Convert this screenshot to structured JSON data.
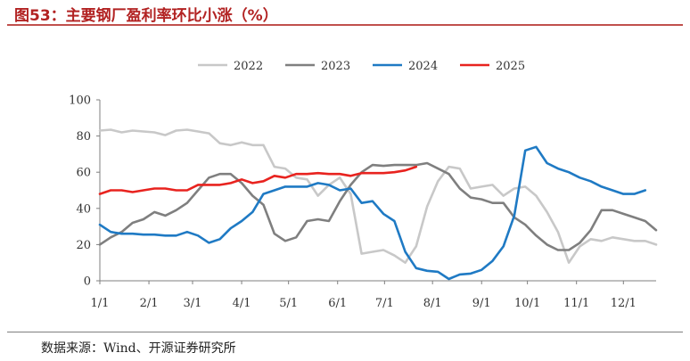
{
  "header": {
    "title": "图53：主要钢厂盈利率环比小涨（%）"
  },
  "footer": {
    "source": "数据来源：Wind、开源证券研究所"
  },
  "colors": {
    "title": "#b22222",
    "accent_rule": "#c0504d"
  },
  "chart_data": {
    "type": "line",
    "title": "",
    "xlabel": "",
    "ylabel": "",
    "x_unit": "week of year (1–52)",
    "x_ticks": [
      {
        "label": "1/1",
        "week": 1
      },
      {
        "label": "2/1",
        "week": 5.5
      },
      {
        "label": "3/1",
        "week": 9.5
      },
      {
        "label": "4/1",
        "week": 14
      },
      {
        "label": "5/1",
        "week": 18.3
      },
      {
        "label": "6/1",
        "week": 22.8
      },
      {
        "label": "7/1",
        "week": 27.1
      },
      {
        "label": "8/1",
        "week": 31.5
      },
      {
        "label": "9/1",
        "week": 36
      },
      {
        "label": "10/1",
        "week": 40.2
      },
      {
        "label": "11/1",
        "week": 44.7
      },
      {
        "label": "12/1",
        "week": 49
      }
    ],
    "xlim": [
      1,
      52
    ],
    "ylim": [
      0,
      100
    ],
    "y_ticks": [
      0,
      20,
      40,
      60,
      80,
      100
    ],
    "grid": false,
    "legend_position": "top-center",
    "series": [
      {
        "name": "2022",
        "color": "#c8c8c8",
        "values": [
          83,
          83.5,
          82,
          83,
          82.5,
          82,
          80.5,
          83,
          83.5,
          82.5,
          81.5,
          76,
          75,
          76.5,
          75,
          75,
          63,
          62,
          57,
          56,
          47,
          53,
          57,
          48,
          15,
          16,
          17,
          14,
          10,
          19,
          41,
          55,
          63,
          62,
          51,
          52,
          53,
          47,
          51,
          52,
          47,
          38,
          27,
          10,
          19,
          23,
          22,
          24,
          23,
          22,
          22,
          20
        ]
      },
      {
        "name": "2023",
        "color": "#7f7f7f",
        "values": [
          20,
          24,
          27,
          32,
          34,
          38,
          36,
          39,
          43,
          50,
          57,
          59,
          59,
          54,
          47,
          42,
          26,
          22,
          24,
          33,
          34,
          33,
          44,
          53,
          60,
          64,
          63.5,
          64,
          64,
          64,
          65,
          62,
          59,
          51,
          46,
          45,
          43,
          43,
          35,
          31,
          25,
          20,
          17,
          17,
          21,
          28,
          39,
          39,
          37,
          35,
          33,
          28
        ]
      },
      {
        "name": "2024",
        "color": "#1f7ac4",
        "values": [
          31,
          27,
          26,
          26,
          25.5,
          25.5,
          25,
          25,
          27,
          25,
          21,
          23,
          29,
          33,
          38,
          48,
          50,
          52,
          52,
          52,
          54,
          53,
          50,
          51,
          43,
          44,
          37,
          33,
          16,
          7,
          5.5,
          5,
          1,
          3.5,
          4,
          6,
          11,
          19,
          36,
          72,
          74,
          65,
          62,
          60,
          57,
          55,
          52,
          50,
          48,
          48,
          50
        ]
      },
      {
        "name": "2025",
        "color": "#e8231f",
        "values": [
          48,
          50,
          50,
          49,
          50,
          51,
          51,
          50,
          50,
          53,
          53,
          53,
          54,
          56,
          54,
          55,
          58,
          57,
          59,
          59,
          59.5,
          59,
          59,
          58,
          59.5,
          59.5,
          59.5,
          60,
          61,
          63
        ]
      }
    ]
  }
}
